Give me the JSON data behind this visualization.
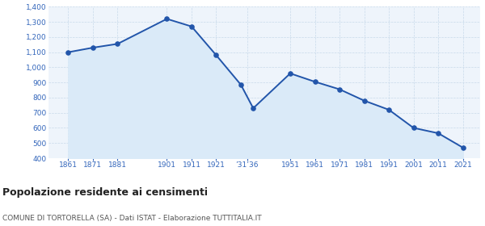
{
  "years": [
    1861,
    1871,
    1881,
    1901,
    1911,
    1921,
    1931,
    1936,
    1951,
    1961,
    1971,
    1981,
    1991,
    2001,
    2011,
    2021
  ],
  "population": [
    1100,
    1130,
    1155,
    1320,
    1270,
    1080,
    885,
    730,
    960,
    905,
    855,
    780,
    720,
    600,
    565,
    470
  ],
  "ylim": [
    400,
    1400
  ],
  "yticks": [
    400,
    500,
    600,
    700,
    800,
    900,
    1000,
    1100,
    1200,
    1300,
    1400
  ],
  "xtick_positions": [
    1861,
    1871,
    1881,
    1901,
    1911,
    1921,
    1933.5,
    1951,
    1961,
    1971,
    1981,
    1991,
    2001,
    2011,
    2021
  ],
  "xtick_labels": [
    "1861",
    "1871",
    "1881",
    "1901",
    "1911",
    "1921",
    "’31’36",
    "1951",
    "1961",
    "1971",
    "1981",
    "1991",
    "2001",
    "2011",
    "2021"
  ],
  "xlim_min": 1853,
  "xlim_max": 2028,
  "line_color": "#2255aa",
  "fill_color": "#daeaf8",
  "marker_color": "#2255aa",
  "bg_color": "#eef4fb",
  "grid_color": "#c8daea",
  "title": "Popolazione residente ai censimenti",
  "subtitle": "COMUNE DI TORTORELLA (SA) - Dati ISTAT - Elaborazione TUTTITALIA.IT",
  "title_color": "#222222",
  "subtitle_color": "#555555",
  "tick_color": "#3366bb",
  "tick_fontsize": 6.5,
  "ytick_fontsize": 6.5,
  "title_fontsize": 9,
  "subtitle_fontsize": 6.5
}
